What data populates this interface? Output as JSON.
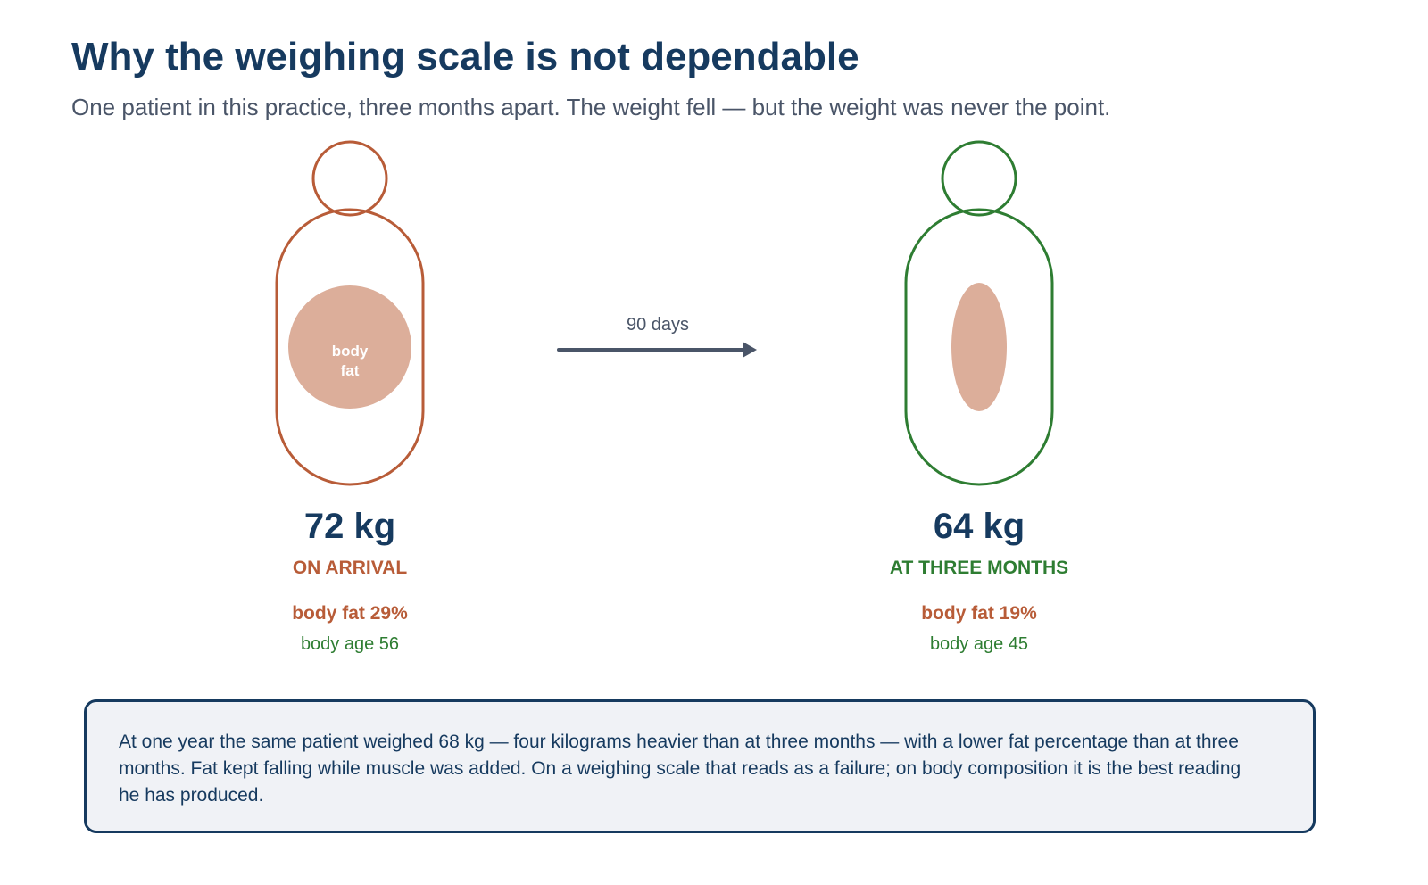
{
  "header": {
    "title": "Why the weighing scale is not dependable",
    "subtitle": "One patient in this practice, three months apart. The weight fell — but the weight was never the point."
  },
  "figures": [
    {
      "fat_label_lines": [
        "body",
        "fat"
      ],
      "weight": "72 kg",
      "label": "ON ARRIVAL",
      "body_fat": "body fat 29%",
      "body_age": "body age 56"
    },
    {
      "weight": "64 kg",
      "label": "AT THREE MONTHS",
      "body_fat": "body fat 19%",
      "body_age": "body age 45"
    }
  ],
  "arrow": {
    "label": "90 days"
  },
  "note": {
    "text": "At one year the same patient weighed 68 kg — four kilograms heavier than at three months — with a lower fat percentage than at three months. Fat kept falling while muscle was added. On a weighing scale that reads as a failure; on body composition it is the best reading he has produced."
  }
}
